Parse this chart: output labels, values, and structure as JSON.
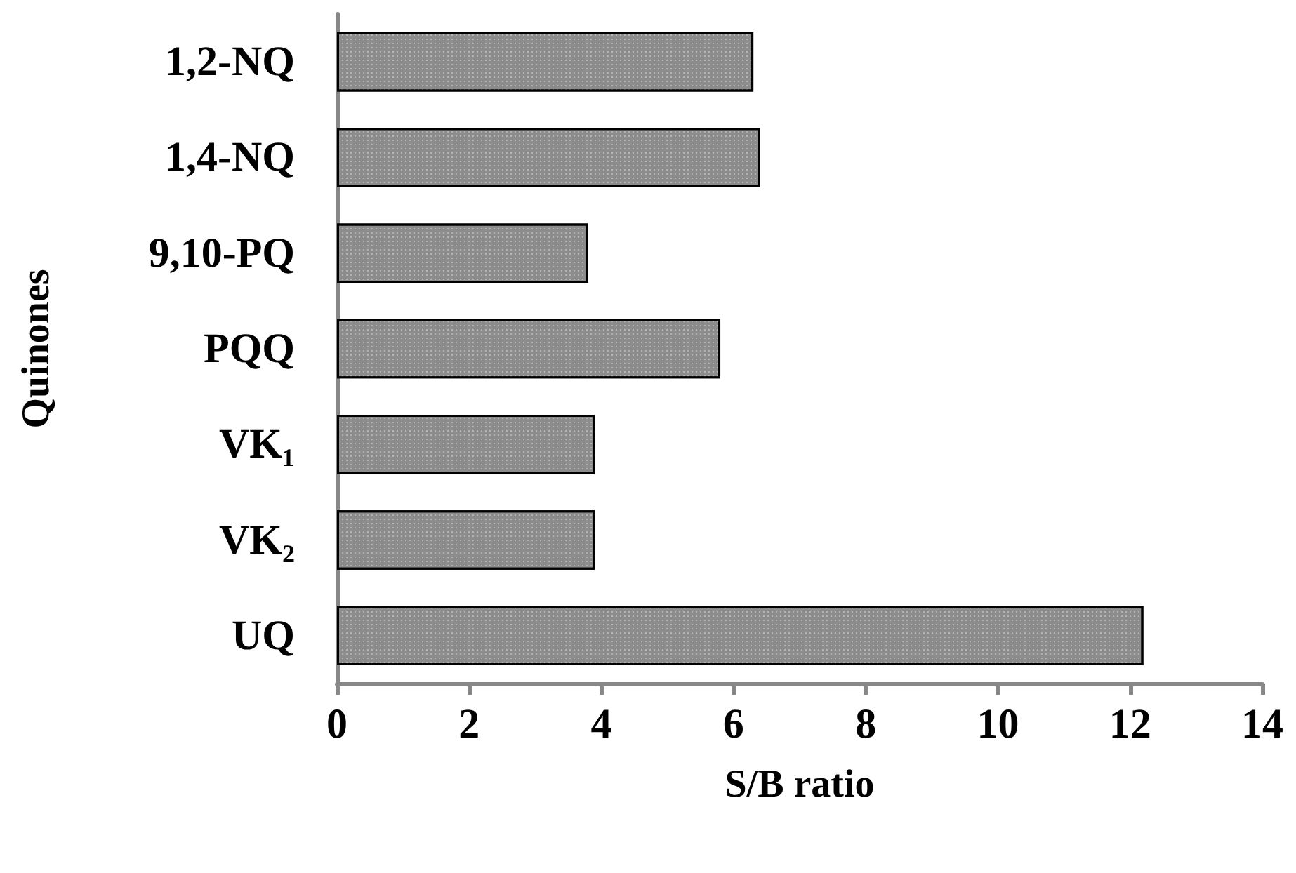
{
  "chart_data": {
    "type": "bar",
    "orientation": "horizontal",
    "xlabel": "S/B ratio",
    "ylabel": "Quinones",
    "categories": [
      "1,2-NQ",
      "1,4-NQ",
      "9,10-PQ",
      "PQQ",
      "VK₁",
      "VK₂",
      "UQ"
    ],
    "values": [
      6.3,
      6.4,
      3.8,
      5.8,
      3.9,
      3.9,
      12.2
    ],
    "color": "#8c8c8c",
    "xlim": [
      0,
      14
    ],
    "xticks": [
      0,
      2,
      4,
      6,
      8,
      10,
      12,
      14
    ]
  }
}
